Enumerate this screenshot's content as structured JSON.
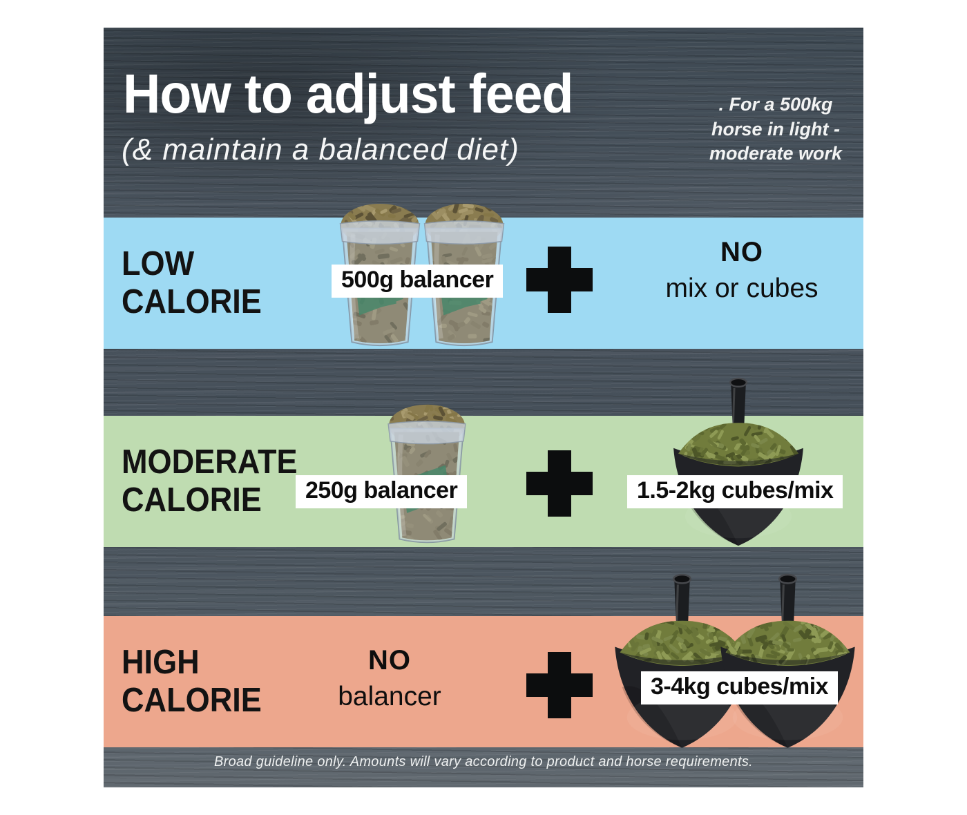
{
  "header": {
    "title": "How to adjust feed",
    "subtitle": "(& maintain a balanced diet)",
    "audience_note": {
      "line1": ". For a 500kg",
      "line2": "horse in light -",
      "line3": "moderate work"
    }
  },
  "colors": {
    "wood_background": "#49535d",
    "band_low": "#9edaf3",
    "band_moderate": "#bfdcb1",
    "band_high": "#eda78d",
    "plus_icon": "#0c0d0e",
    "label_box_background": "#ffffff",
    "band_text": "#131313",
    "light_text": "#ffffff",
    "cup_pellets": "#8a7c50",
    "scoop_pellets": "#717c3c",
    "scoop_body": "#212226"
  },
  "bands": {
    "low": {
      "category_line1": "LOW",
      "category_line2": "CALORIE",
      "balancer_amount": "500g balancer",
      "extra_feed_line1": "NO",
      "extra_feed_line2": "mix or cubes"
    },
    "moderate": {
      "category_line1": "MODERATE",
      "category_line2": "CALORIE",
      "balancer_amount": "250g balancer",
      "extra_feed_amount": "1.5-2kg cubes/mix"
    },
    "high": {
      "category_line1": "HIGH",
      "category_line2": "CALORIE",
      "balancer_line1": "NO",
      "balancer_line2": "balancer",
      "extra_feed_amount": "3-4kg cubes/mix"
    }
  },
  "icons": {
    "plus": "plus-cross",
    "balancer_cup": "cup-of-balancer-pellets",
    "feed_scoop": "scoop-of-feed-cubes"
  },
  "footer": {
    "disclaimer": "Broad guideline only.  Amounts will vary according to product and horse requirements."
  }
}
